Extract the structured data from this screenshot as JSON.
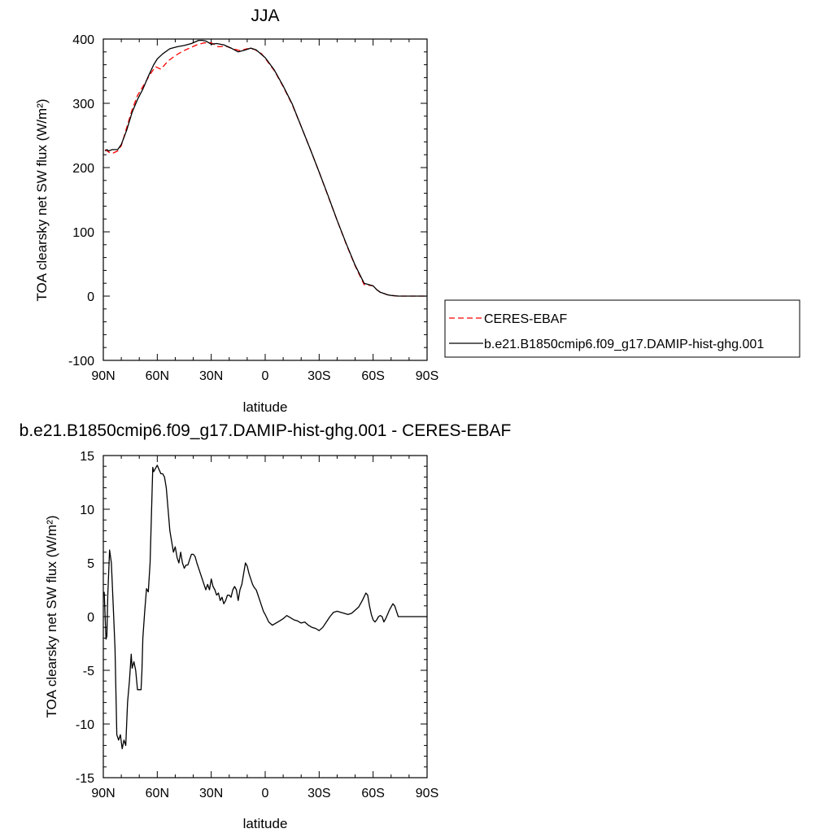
{
  "chart_data": [
    {
      "type": "line",
      "title": "JJA",
      "xlabel": "latitude",
      "ylabel": "TOA clearsky net SW flux (W/m²)",
      "xlim": [
        90,
        -90
      ],
      "ylim": [
        -100,
        400
      ],
      "x_ticks": [
        90,
        60,
        30,
        0,
        -30,
        -60,
        -90
      ],
      "x_tick_labels": [
        "90N",
        "60N",
        "30N",
        "0",
        "30S",
        "60S",
        "90S"
      ],
      "y_ticks": [
        -100,
        0,
        100,
        200,
        300,
        400
      ],
      "y_tick_labels": [
        "-100",
        "0",
        "100",
        "200",
        "300",
        "400"
      ],
      "legend_position": "right",
      "series": [
        {
          "name": "CERES-EBAF",
          "color": "#ff0000",
          "dash": "dashed",
          "x": [
            89,
            87,
            85,
            82,
            80,
            77,
            74,
            71,
            68,
            64,
            61,
            58,
            54,
            50,
            46,
            42,
            38,
            34,
            30,
            26,
            22,
            18,
            14,
            10,
            6,
            2,
            0,
            -5,
            -10,
            -15,
            -20,
            -25,
            -30,
            -35,
            -40,
            -45,
            -50,
            -55,
            -60,
            -62,
            -64,
            -66,
            -68,
            -70,
            -74,
            -78,
            -82,
            -86,
            -90
          ],
          "y": [
            228,
            224,
            222,
            226,
            234,
            262,
            290,
            312,
            326,
            345,
            357,
            353,
            366,
            374,
            381,
            386,
            391,
            394,
            394,
            388,
            389,
            385,
            382,
            385,
            384,
            377,
            370,
            351,
            326,
            298,
            264,
            229,
            193,
            155,
            118,
            81,
            47,
            18,
            16,
            10,
            6,
            4,
            2,
            1,
            0,
            0,
            0,
            0,
            0
          ]
        },
        {
          "name": "b.e21.B1850cmip6.f09_g17.DAMIP-hist-ghg.001",
          "color": "#000000",
          "dash": "solid",
          "x": [
            89,
            88,
            87,
            85,
            82,
            80,
            77,
            74,
            71,
            68,
            65,
            62,
            60,
            57,
            53,
            49,
            45,
            41,
            37,
            35,
            33,
            30,
            27,
            23,
            19,
            15,
            11,
            8,
            5,
            2,
            0,
            -5,
            -10,
            -15,
            -20,
            -25,
            -30,
            -35,
            -40,
            -45,
            -50,
            -55,
            -60,
            -62,
            -64,
            -66,
            -68,
            -70,
            -74,
            -78,
            -82,
            -86,
            -90
          ],
          "y": [
            226,
            228,
            226,
            228,
            228,
            236,
            258,
            286,
            306,
            322,
            342,
            360,
            369,
            377,
            385,
            388,
            390,
            393,
            398,
            398,
            397,
            392,
            393,
            391,
            386,
            380,
            383,
            386,
            383,
            376,
            371,
            352,
            327,
            299,
            264,
            229,
            193,
            156,
            118,
            82,
            48,
            20,
            16,
            10,
            6,
            4,
            2,
            1,
            0,
            0,
            0,
            0,
            0
          ]
        }
      ]
    },
    {
      "type": "line",
      "title": "b.e21.B1850cmip6.f09_g17.DAMIP-hist-ghg.001 - CERES-EBAF",
      "xlabel": "latitude",
      "ylabel": "TOA clearsky net SW flux (W/m²)",
      "xlim": [
        90,
        -90
      ],
      "ylim": [
        -15,
        15
      ],
      "x_ticks": [
        90,
        60,
        30,
        0,
        -30,
        -60,
        -90
      ],
      "x_tick_labels": [
        "90N",
        "60N",
        "30N",
        "0",
        "30S",
        "60S",
        "90S"
      ],
      "y_ticks": [
        -15,
        -10,
        -5,
        0,
        5,
        10,
        15
      ],
      "y_tick_labels": [
        "-15",
        "-10",
        "-5",
        "0",
        "5",
        "10",
        "15"
      ],
      "series": [
        {
          "name": "",
          "color": "#000000",
          "dash": "solid",
          "x": [
            89.5,
            88.5,
            88,
            87.5,
            86.5,
            85.5,
            84.5,
            83.5,
            82.5,
            81.5,
            80.5,
            79.5,
            78.5,
            77.5,
            76.5,
            75.5,
            74.5,
            74,
            73,
            72,
            71,
            70,
            69,
            68.5,
            68,
            67,
            66,
            65,
            64,
            62.5,
            62,
            61,
            60,
            59,
            58,
            57,
            56,
            55,
            54,
            53,
            52,
            51,
            50,
            49,
            48,
            47,
            46,
            45,
            44,
            43,
            42,
            41,
            40,
            39,
            38,
            37,
            36,
            35,
            34,
            33,
            32,
            31,
            30,
            29,
            28,
            27,
            26,
            25,
            24,
            23,
            22,
            21,
            20,
            19,
            18,
            17,
            16,
            15,
            14,
            13,
            12,
            11,
            10,
            9,
            8,
            7,
            6,
            5,
            4,
            3,
            2,
            1,
            0,
            -2,
            -4,
            -6,
            -8,
            -10,
            -12,
            -14,
            -16,
            -18,
            -20,
            -22,
            -24,
            -26,
            -28,
            -30,
            -32,
            -34,
            -36,
            -38,
            -40,
            -42,
            -44,
            -46,
            -48,
            -50,
            -52,
            -54,
            -56,
            -57,
            -58,
            -59,
            -60,
            -61,
            -62,
            -63,
            -64,
            -65,
            -66,
            -67,
            -68,
            -69,
            -70,
            -71,
            -72,
            -73,
            -74,
            -75,
            -76,
            -77,
            -78,
            -80,
            -82,
            -84,
            -86,
            -88,
            -90
          ],
          "y": [
            2.3,
            -2.1,
            -1.8,
            2.0,
            6.2,
            5.0,
            1.0,
            -3.0,
            -11.0,
            -11.5,
            -11.0,
            -12.3,
            -11.5,
            -12.0,
            -8.0,
            -6.0,
            -3.5,
            -4.8,
            -4.2,
            -5.0,
            -6.8,
            -6.8,
            -6.8,
            -5.0,
            -2.0,
            0.5,
            2.6,
            2.3,
            5.0,
            13.9,
            13.5,
            13.8,
            14.1,
            13.7,
            13.3,
            13.3,
            13.0,
            12.0,
            10.0,
            8.0,
            7.0,
            6.0,
            6.5,
            5.5,
            5.0,
            6.0,
            5.0,
            4.5,
            4.8,
            4.8,
            5.3,
            5.8,
            5.8,
            5.6,
            5.0,
            4.5,
            4.0,
            3.5,
            3.0,
            2.5,
            3.0,
            2.5,
            3.5,
            2.8,
            2.5,
            2.0,
            2.2,
            1.5,
            1.8,
            1.2,
            1.5,
            2.0,
            2.0,
            1.8,
            2.5,
            2.8,
            2.5,
            1.5,
            2.5,
            3.0,
            4.0,
            5.0,
            4.7,
            4.0,
            3.5,
            3.0,
            2.7,
            2.5,
            2.0,
            1.5,
            1.0,
            0.5,
            0.2,
            -0.5,
            -0.8,
            -0.6,
            -0.4,
            -0.2,
            0.1,
            -0.1,
            -0.3,
            -0.4,
            -0.6,
            -0.5,
            -0.8,
            -1.0,
            -1.1,
            -1.3,
            -1.0,
            -0.5,
            0.0,
            0.4,
            0.5,
            0.4,
            0.3,
            0.2,
            0.3,
            0.6,
            0.9,
            1.5,
            2.2,
            2.0,
            1.0,
            0.2,
            -0.3,
            -0.5,
            -0.3,
            0.0,
            0.1,
            0.0,
            -0.5,
            -0.2,
            0.2,
            0.6,
            0.9,
            1.2,
            1.0,
            0.5,
            0.0,
            0.0,
            0.0,
            0.0,
            0.0,
            0.0,
            0.0,
            0.0,
            0.0,
            0.0,
            0.0
          ]
        }
      ]
    }
  ]
}
